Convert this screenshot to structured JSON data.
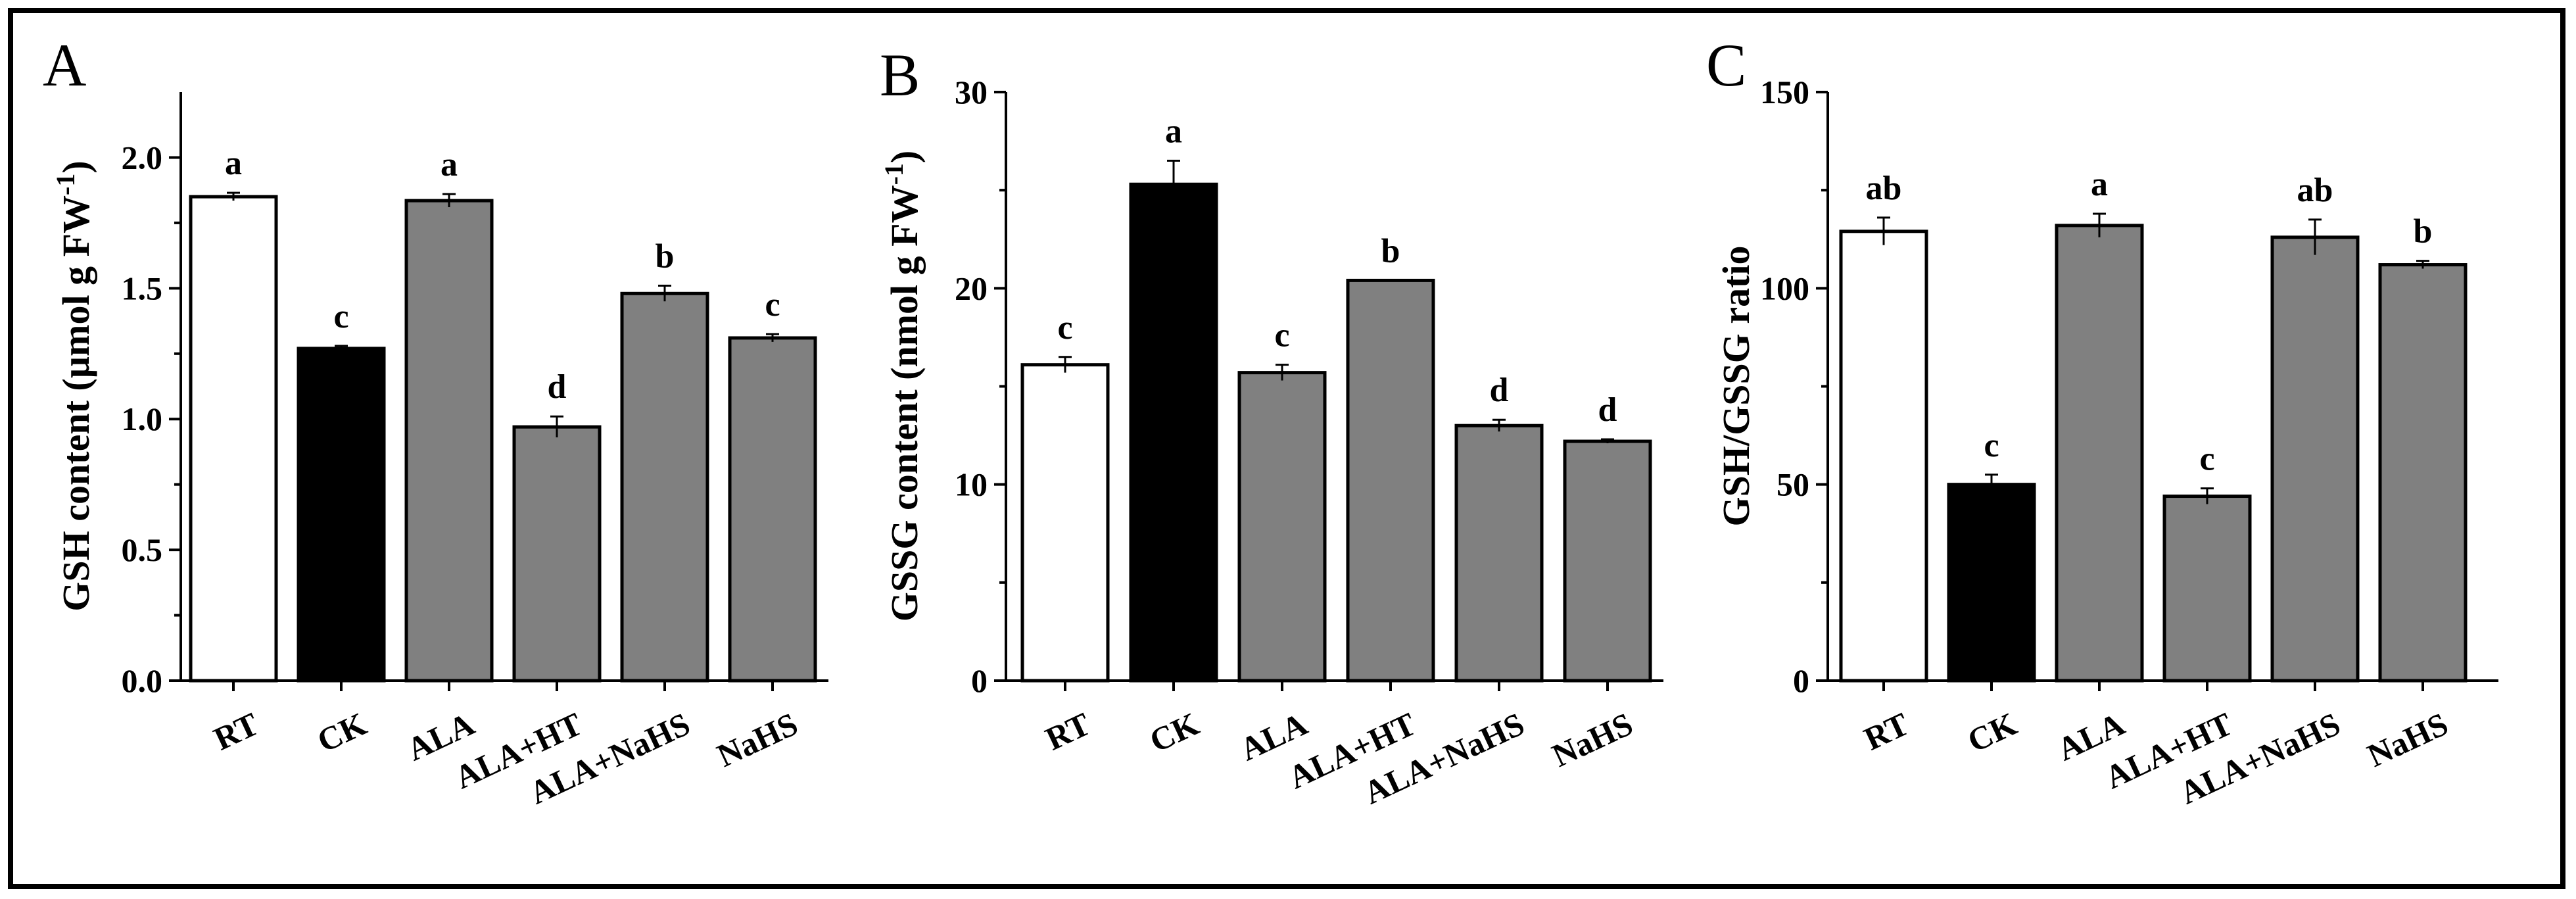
{
  "chart_data": [
    {
      "type": "bar",
      "panel": "A",
      "ylabel": "GSH content (µmol g FW",
      "ylabel_sup": "-1",
      "ylabel_close": ")",
      "ylim": [
        0,
        2.25
      ],
      "yticks": [
        "0.0",
        "0.5",
        "1.0",
        "1.5",
        "2.0"
      ],
      "ytick_values": [
        0,
        0.5,
        1.0,
        1.5,
        2.0
      ],
      "categories": [
        "RT",
        "CK",
        "ALA",
        "ALA+HT",
        "ALA+NaHS",
        "NaHS"
      ],
      "values": [
        1.85,
        1.27,
        1.835,
        0.97,
        1.48,
        1.31
      ],
      "errors": [
        0.015,
        0.01,
        0.025,
        0.04,
        0.03,
        0.015
      ],
      "letters": [
        "a",
        "c",
        "a",
        "d",
        "b",
        "c"
      ],
      "colors": [
        "#ffffff",
        "#000000",
        "#808080",
        "#808080",
        "#808080",
        "#808080"
      ]
    },
    {
      "type": "bar",
      "panel": "B",
      "ylabel": "GSSG content (nmol g FW",
      "ylabel_sup": "-1",
      "ylabel_close": ")",
      "ylim": [
        0,
        30
      ],
      "yticks": [
        "0",
        "10",
        "20",
        "30"
      ],
      "ytick_values": [
        0,
        10,
        20,
        30
      ],
      "categories": [
        "RT",
        "CK",
        "ALA",
        "ALA+HT",
        "ALA+NaHS",
        "NaHS"
      ],
      "values": [
        16.1,
        25.3,
        15.7,
        20.4,
        13.0,
        12.2
      ],
      "errors": [
        0.4,
        1.2,
        0.4,
        0.0,
        0.3,
        0.1
      ],
      "letters": [
        "c",
        "a",
        "c",
        "b",
        "d",
        "d"
      ],
      "colors": [
        "#ffffff",
        "#000000",
        "#808080",
        "#808080",
        "#808080",
        "#808080"
      ]
    },
    {
      "type": "bar",
      "panel": "C",
      "ylabel": "GSH/GSSG ratio",
      "ylabel_sup": "",
      "ylabel_close": "",
      "ylim": [
        0,
        150
      ],
      "yticks": [
        "0",
        "50",
        "100",
        "150"
      ],
      "ytick_values": [
        0,
        50,
        100,
        150
      ],
      "categories": [
        "RT",
        "CK",
        "ALA",
        "ALA+HT",
        "ALA+NaHS",
        "NaHS"
      ],
      "values": [
        114.5,
        50.0,
        116.0,
        47.0,
        113.0,
        106.0
      ],
      "errors": [
        3.5,
        2.5,
        3.0,
        2.0,
        4.5,
        1.0
      ],
      "letters": [
        "ab",
        "c",
        "a",
        "c",
        "ab",
        "b"
      ],
      "colors": [
        "#ffffff",
        "#000000",
        "#808080",
        "#808080",
        "#808080",
        "#808080"
      ]
    }
  ]
}
